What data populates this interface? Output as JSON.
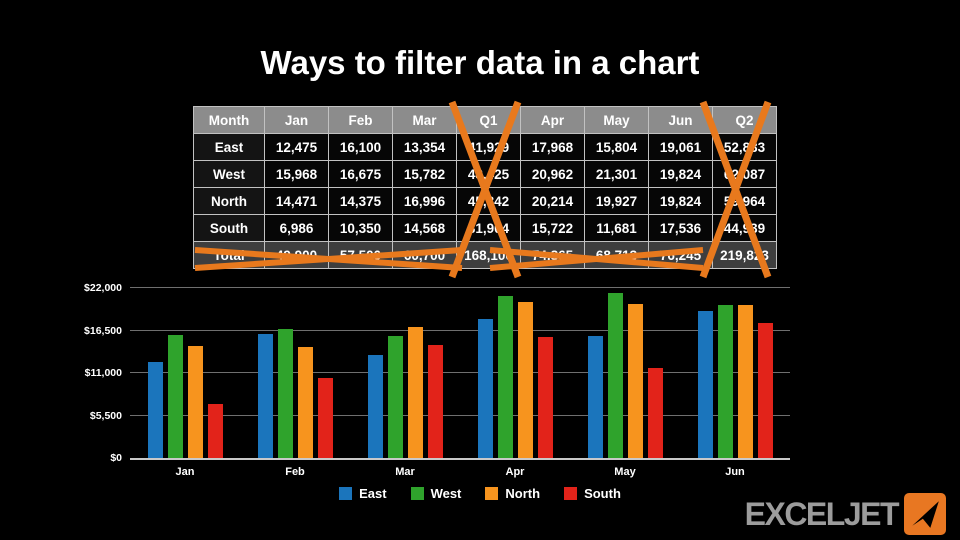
{
  "title": "Ways to filter data in a chart",
  "table": {
    "columns": [
      "Month",
      "Jan",
      "Feb",
      "Mar",
      "Q1",
      "Apr",
      "May",
      "Jun",
      "Q2"
    ],
    "rows": [
      {
        "label": "East",
        "values": [
          "12,475",
          "16,100",
          "13,354",
          "41,929",
          "17,968",
          "15,804",
          "19,061",
          "52,833"
        ]
      },
      {
        "label": "West",
        "values": [
          "15,968",
          "16,675",
          "15,782",
          "48,425",
          "20,962",
          "21,301",
          "19,824",
          "62,087"
        ]
      },
      {
        "label": "North",
        "values": [
          "14,471",
          "14,375",
          "16,996",
          "45,842",
          "20,214",
          "19,927",
          "19,824",
          "59,964"
        ]
      },
      {
        "label": "South",
        "values": [
          "6,986",
          "10,350",
          "14,568",
          "31,904",
          "15,722",
          "11,681",
          "17,536",
          "44,939"
        ]
      },
      {
        "label": "Total",
        "values": [
          "49,900",
          "57,500",
          "60,700",
          "168,100",
          "74,865",
          "68,713",
          "76,245",
          "219,823"
        ],
        "is_total": true
      }
    ],
    "annotations": [
      "Q1 column crossed out with orange X",
      "Q2 column crossed out with orange X",
      "Total row crossed out with two orange X marks"
    ]
  },
  "chart_data": {
    "type": "bar",
    "categories": [
      "Jan",
      "Feb",
      "Mar",
      "Apr",
      "May",
      "Jun"
    ],
    "series": [
      {
        "name": "East",
        "color": "#1B75BC",
        "values": [
          12475,
          16100,
          13354,
          17968,
          15804,
          19061
        ]
      },
      {
        "name": "West",
        "color": "#2FA32C",
        "values": [
          15968,
          16675,
          15782,
          20962,
          21301,
          19824
        ]
      },
      {
        "name": "North",
        "color": "#F7941E",
        "values": [
          14471,
          14375,
          16996,
          20214,
          19927,
          19824
        ]
      },
      {
        "name": "South",
        "color": "#E2231A",
        "values": [
          6986,
          10350,
          14568,
          15722,
          11681,
          17536
        ]
      }
    ],
    "title": "",
    "xlabel": "",
    "ylabel": "",
    "ylim": [
      0,
      22000
    ],
    "yticks": [
      {
        "value": 22000,
        "label": "$22,000"
      },
      {
        "value": 16500,
        "label": "$16,500"
      },
      {
        "value": 11000,
        "label": "$11,000"
      },
      {
        "value": 5500,
        "label": "$5,500"
      },
      {
        "value": 0,
        "label": "$0"
      }
    ],
    "grid": true,
    "legend_position": "bottom"
  },
  "logo": {
    "text": "EXCELJET",
    "icon": "paper-plane-icon"
  },
  "colors": {
    "east_blue": "#1B75BC",
    "west_green": "#2FA32C",
    "north_orange": "#F7941E",
    "south_red": "#E2231A",
    "x_mark": "#E8791D",
    "table_header_bg": "#8C8C8C",
    "table_total_bg": "#3E3E3E",
    "table_border": "#C2C2C2",
    "grid_line": "#6F6F6F",
    "axis_line": "#C9C9C9",
    "logo_gray": "#9C9C9C",
    "logo_orange": "#E87722"
  }
}
